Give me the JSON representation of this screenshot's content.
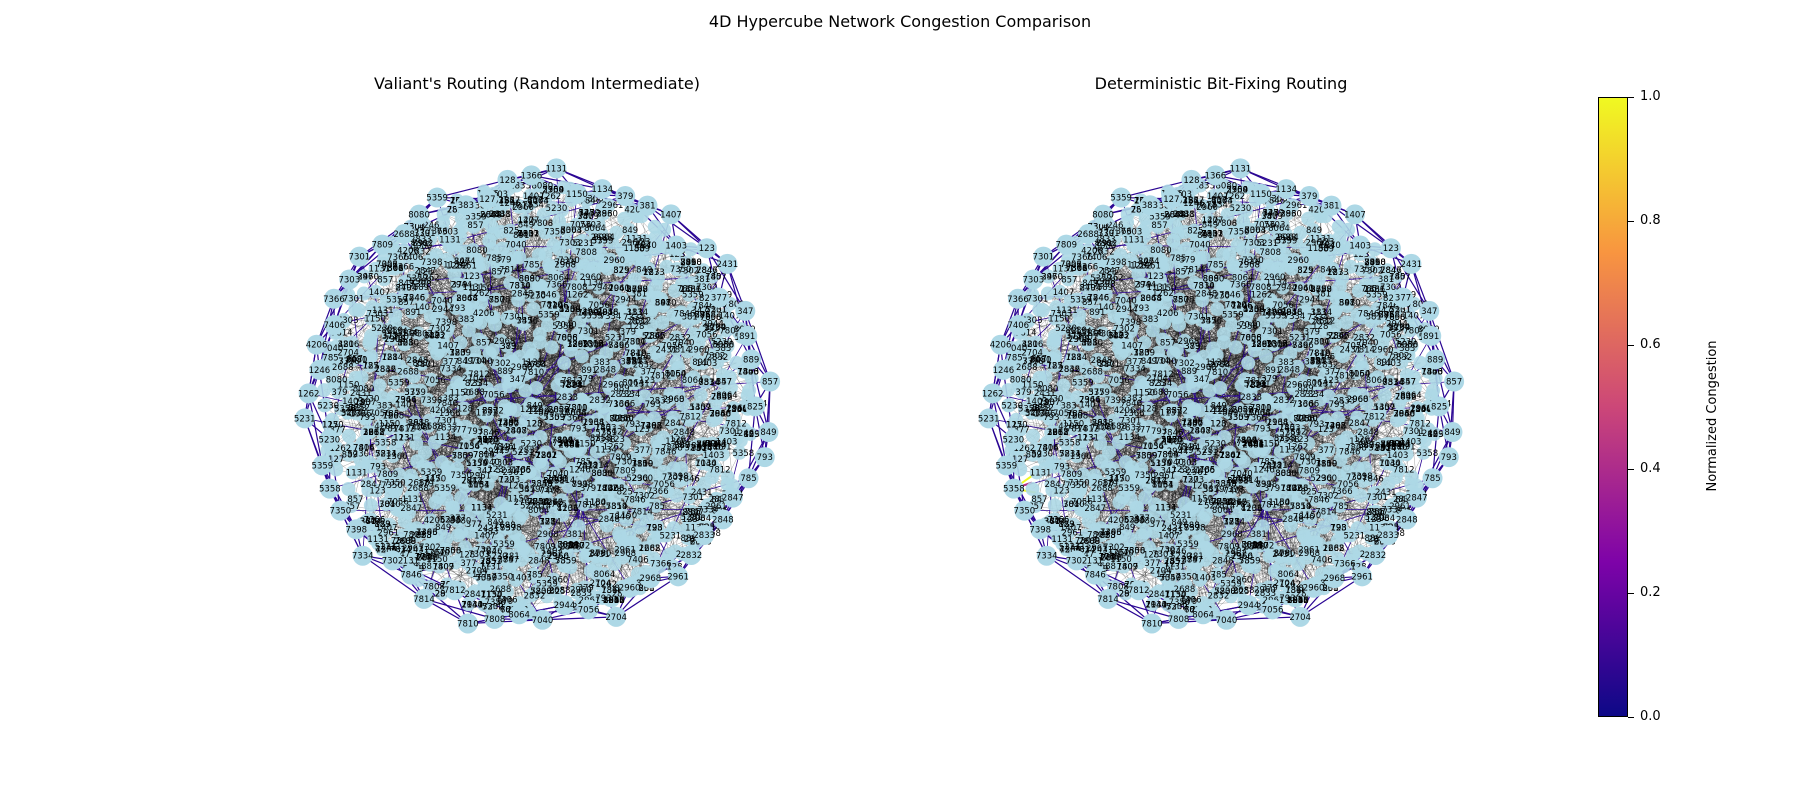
{
  "figure_title": "4D Hypercube Network Congestion Comparison",
  "panels": [
    {
      "title": "Valiant's Routing (Random Intermediate)"
    },
    {
      "title": "Deterministic Bit-Fixing Routing"
    }
  ],
  "colorbar": {
    "label": "Normalized Congestion",
    "ticks": [
      "0.0",
      "0.2",
      "0.4",
      "0.6",
      "0.8",
      "1.0"
    ],
    "colormap": [
      "#0d0887",
      "#7e03a8",
      "#cc4778",
      "#f89540",
      "#f0f921"
    ]
  },
  "colors": {
    "node_fill": "#add8e6",
    "edge_low": "#2a0593",
    "edge_mid": "#b83289",
    "edge_high": "#f0f921"
  },
  "chart_data": [
    {
      "type": "network",
      "title": "Valiant's Routing (Random Intermediate)",
      "node_labels": [
        "383",
        "127",
        "128",
        "1366",
        "1131",
        "1150",
        "1134",
        "379",
        "381",
        "1407",
        "1403",
        "123",
        "2431",
        "377",
        "347",
        "891",
        "889",
        "857",
        "825",
        "849",
        "793",
        "785",
        "2847",
        "2848",
        "2833",
        "2832",
        "2961",
        "2968",
        "2960",
        "2704",
        "7056",
        "2944",
        "7040",
        "8064",
        "7808",
        "7810",
        "7812",
        "7814",
        "7846",
        "7302",
        "7334",
        "7398",
        "7350",
        "5358",
        "5359",
        "5230",
        "5231",
        "1262",
        "1246",
        "4206",
        "7406",
        "7366",
        "7303",
        "7301",
        "7809",
        "2688",
        "8080",
        "5359"
      ],
      "edge_congestion": {
        "normalized_min": 0.0,
        "normalized_max": 0.15,
        "typical": 0.05
      }
    },
    {
      "type": "network",
      "title": "Deterministic Bit-Fixing Routing",
      "node_labels": [
        "383",
        "127",
        "128",
        "1366",
        "1131",
        "1150",
        "1134",
        "379",
        "381",
        "1407",
        "1403",
        "123",
        "2431",
        "377",
        "347",
        "891",
        "889",
        "857",
        "825",
        "849",
        "793",
        "785",
        "2847",
        "2848",
        "2833",
        "2832",
        "2961",
        "2968",
        "2960",
        "2704",
        "7056",
        "2944",
        "7040",
        "8064",
        "7808",
        "7810",
        "7812",
        "7814",
        "7846",
        "7302",
        "7334",
        "7398",
        "7350",
        "5358",
        "5359",
        "5230",
        "5231",
        "1262",
        "1246",
        "4206",
        "7406",
        "7366",
        "7303",
        "7301",
        "7809",
        "2688",
        "8080",
        "5359"
      ],
      "edge_congestion": {
        "normalized_min": 0.0,
        "normalized_max": 1.0,
        "typical": 0.03
      }
    }
  ]
}
